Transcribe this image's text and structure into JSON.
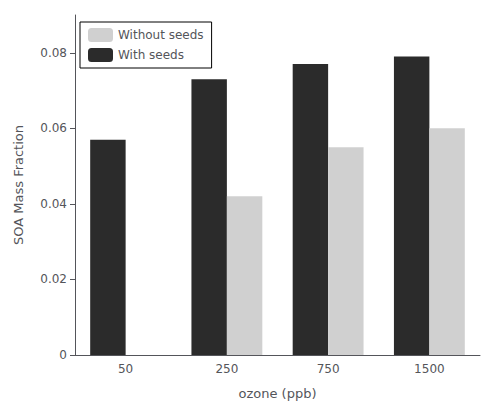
{
  "chart_data": {
    "type": "bar",
    "xlabel": "ozone (ppb)",
    "ylabel": "SOA Mass Fraction",
    "categories": [
      "50",
      "250",
      "750",
      "1500"
    ],
    "series": [
      {
        "name": "With seeds",
        "color": "#2b2b2b",
        "values": [
          0.057,
          0.073,
          0.077,
          0.079
        ]
      },
      {
        "name": "Without seeds",
        "color": "#d0d0d0",
        "values": [
          0.0,
          0.042,
          0.055,
          0.06
        ]
      }
    ],
    "ylim": [
      0,
      0.09
    ],
    "yticks": [
      0,
      0.02,
      0.04,
      0.06,
      0.08
    ],
    "grid": false,
    "legend": "upper left"
  }
}
